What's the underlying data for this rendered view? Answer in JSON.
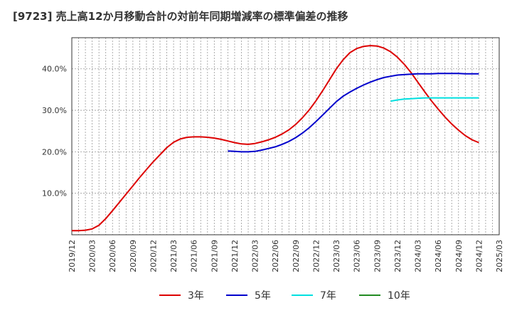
{
  "chart_data": {
    "type": "line",
    "title": "[9723]  売上高12か月移動合計の対前年同期増減率の標準偏差の推移",
    "xlabel": "",
    "ylabel": "",
    "x_ticks": [
      "2019/12",
      "2020/03",
      "2020/06",
      "2020/09",
      "2020/12",
      "2021/03",
      "2021/06",
      "2021/09",
      "2021/12",
      "2022/03",
      "2022/06",
      "2022/09",
      "2022/12",
      "2023/03",
      "2023/06",
      "2023/09",
      "2023/12",
      "2024/03",
      "2024/06",
      "2024/09",
      "2024/12",
      "2025/03"
    ],
    "y_ticks": [
      "10.0%",
      "20.0%",
      "30.0%",
      "40.0%"
    ],
    "ylim": [
      0.0,
      47.5
    ],
    "grid": true,
    "legend_position": "bottom",
    "series": [
      {
        "name": "3年",
        "color": "#dd0000",
        "points": [
          [
            "2019/12",
            1.0
          ],
          [
            "2020/01",
            1.0
          ],
          [
            "2020/02",
            1.1
          ],
          [
            "2020/03",
            1.4
          ],
          [
            "2020/04",
            2.3
          ],
          [
            "2020/05",
            3.9
          ],
          [
            "2020/06",
            5.8
          ],
          [
            "2020/07",
            7.8
          ],
          [
            "2020/08",
            9.8
          ],
          [
            "2020/09",
            11.8
          ],
          [
            "2020/10",
            13.8
          ],
          [
            "2020/11",
            15.7
          ],
          [
            "2020/12",
            17.6
          ],
          [
            "2021/01",
            19.3
          ],
          [
            "2021/02",
            21.0
          ],
          [
            "2021/03",
            22.3
          ],
          [
            "2021/04",
            23.1
          ],
          [
            "2021/05",
            23.5
          ],
          [
            "2021/06",
            23.6
          ],
          [
            "2021/07",
            23.6
          ],
          [
            "2021/08",
            23.5
          ],
          [
            "2021/09",
            23.3
          ],
          [
            "2021/10",
            23.0
          ],
          [
            "2021/11",
            22.6
          ],
          [
            "2021/12",
            22.2
          ],
          [
            "2022/01",
            21.9
          ],
          [
            "2022/02",
            21.8
          ],
          [
            "2022/03",
            22.0
          ],
          [
            "2022/04",
            22.4
          ],
          [
            "2022/05",
            22.9
          ],
          [
            "2022/06",
            23.5
          ],
          [
            "2022/07",
            24.3
          ],
          [
            "2022/08",
            25.3
          ],
          [
            "2022/09",
            26.6
          ],
          [
            "2022/10",
            28.2
          ],
          [
            "2022/11",
            30.1
          ],
          [
            "2022/12",
            32.3
          ],
          [
            "2023/01",
            34.8
          ],
          [
            "2023/02",
            37.4
          ],
          [
            "2023/03",
            40.0
          ],
          [
            "2023/04",
            42.2
          ],
          [
            "2023/05",
            43.9
          ],
          [
            "2023/06",
            44.9
          ],
          [
            "2023/07",
            45.4
          ],
          [
            "2023/08",
            45.6
          ],
          [
            "2023/09",
            45.5
          ],
          [
            "2023/10",
            45.0
          ],
          [
            "2023/11",
            44.1
          ],
          [
            "2023/12",
            42.8
          ],
          [
            "2024/01",
            41.1
          ],
          [
            "2024/02",
            39.1
          ],
          [
            "2024/03",
            36.8
          ],
          [
            "2024/04",
            34.5
          ],
          [
            "2024/05",
            32.3
          ],
          [
            "2024/06",
            30.3
          ],
          [
            "2024/07",
            28.4
          ],
          [
            "2024/08",
            26.7
          ],
          [
            "2024/09",
            25.2
          ],
          [
            "2024/10",
            23.9
          ],
          [
            "2024/11",
            22.9
          ],
          [
            "2024/12",
            22.2
          ]
        ]
      },
      {
        "name": "5年",
        "color": "#0000cc",
        "points": [
          [
            "2021/11",
            20.2
          ],
          [
            "2021/12",
            20.1
          ],
          [
            "2022/01",
            20.0
          ],
          [
            "2022/02",
            20.0
          ],
          [
            "2022/03",
            20.1
          ],
          [
            "2022/04",
            20.4
          ],
          [
            "2022/05",
            20.8
          ],
          [
            "2022/06",
            21.2
          ],
          [
            "2022/07",
            21.8
          ],
          [
            "2022/08",
            22.5
          ],
          [
            "2022/09",
            23.4
          ],
          [
            "2022/10",
            24.5
          ],
          [
            "2022/11",
            25.8
          ],
          [
            "2022/12",
            27.3
          ],
          [
            "2023/01",
            28.9
          ],
          [
            "2023/02",
            30.5
          ],
          [
            "2023/03",
            32.1
          ],
          [
            "2023/04",
            33.4
          ],
          [
            "2023/05",
            34.4
          ],
          [
            "2023/06",
            35.3
          ],
          [
            "2023/07",
            36.1
          ],
          [
            "2023/08",
            36.8
          ],
          [
            "2023/09",
            37.4
          ],
          [
            "2023/10",
            37.9
          ],
          [
            "2023/11",
            38.2
          ],
          [
            "2023/12",
            38.5
          ],
          [
            "2024/01",
            38.6
          ],
          [
            "2024/02",
            38.7
          ],
          [
            "2024/03",
            38.8
          ],
          [
            "2024/04",
            38.8
          ],
          [
            "2024/05",
            38.8
          ],
          [
            "2024/06",
            38.9
          ],
          [
            "2024/07",
            38.9
          ],
          [
            "2024/08",
            38.9
          ],
          [
            "2024/09",
            38.9
          ],
          [
            "2024/10",
            38.8
          ],
          [
            "2024/11",
            38.8
          ],
          [
            "2024/12",
            38.8
          ]
        ]
      },
      {
        "name": "7年",
        "color": "#00e0e0",
        "points": [
          [
            "2023/11",
            32.2
          ],
          [
            "2023/12",
            32.5
          ],
          [
            "2024/01",
            32.7
          ],
          [
            "2024/02",
            32.8
          ],
          [
            "2024/03",
            32.9
          ],
          [
            "2024/04",
            33.0
          ],
          [
            "2024/05",
            33.0
          ],
          [
            "2024/06",
            33.0
          ],
          [
            "2024/07",
            33.0
          ],
          [
            "2024/08",
            33.0
          ],
          [
            "2024/09",
            33.0
          ],
          [
            "2024/10",
            33.0
          ],
          [
            "2024/11",
            33.0
          ],
          [
            "2024/12",
            33.0
          ]
        ]
      },
      {
        "name": "10年",
        "color": "#228b22",
        "points": []
      }
    ]
  }
}
